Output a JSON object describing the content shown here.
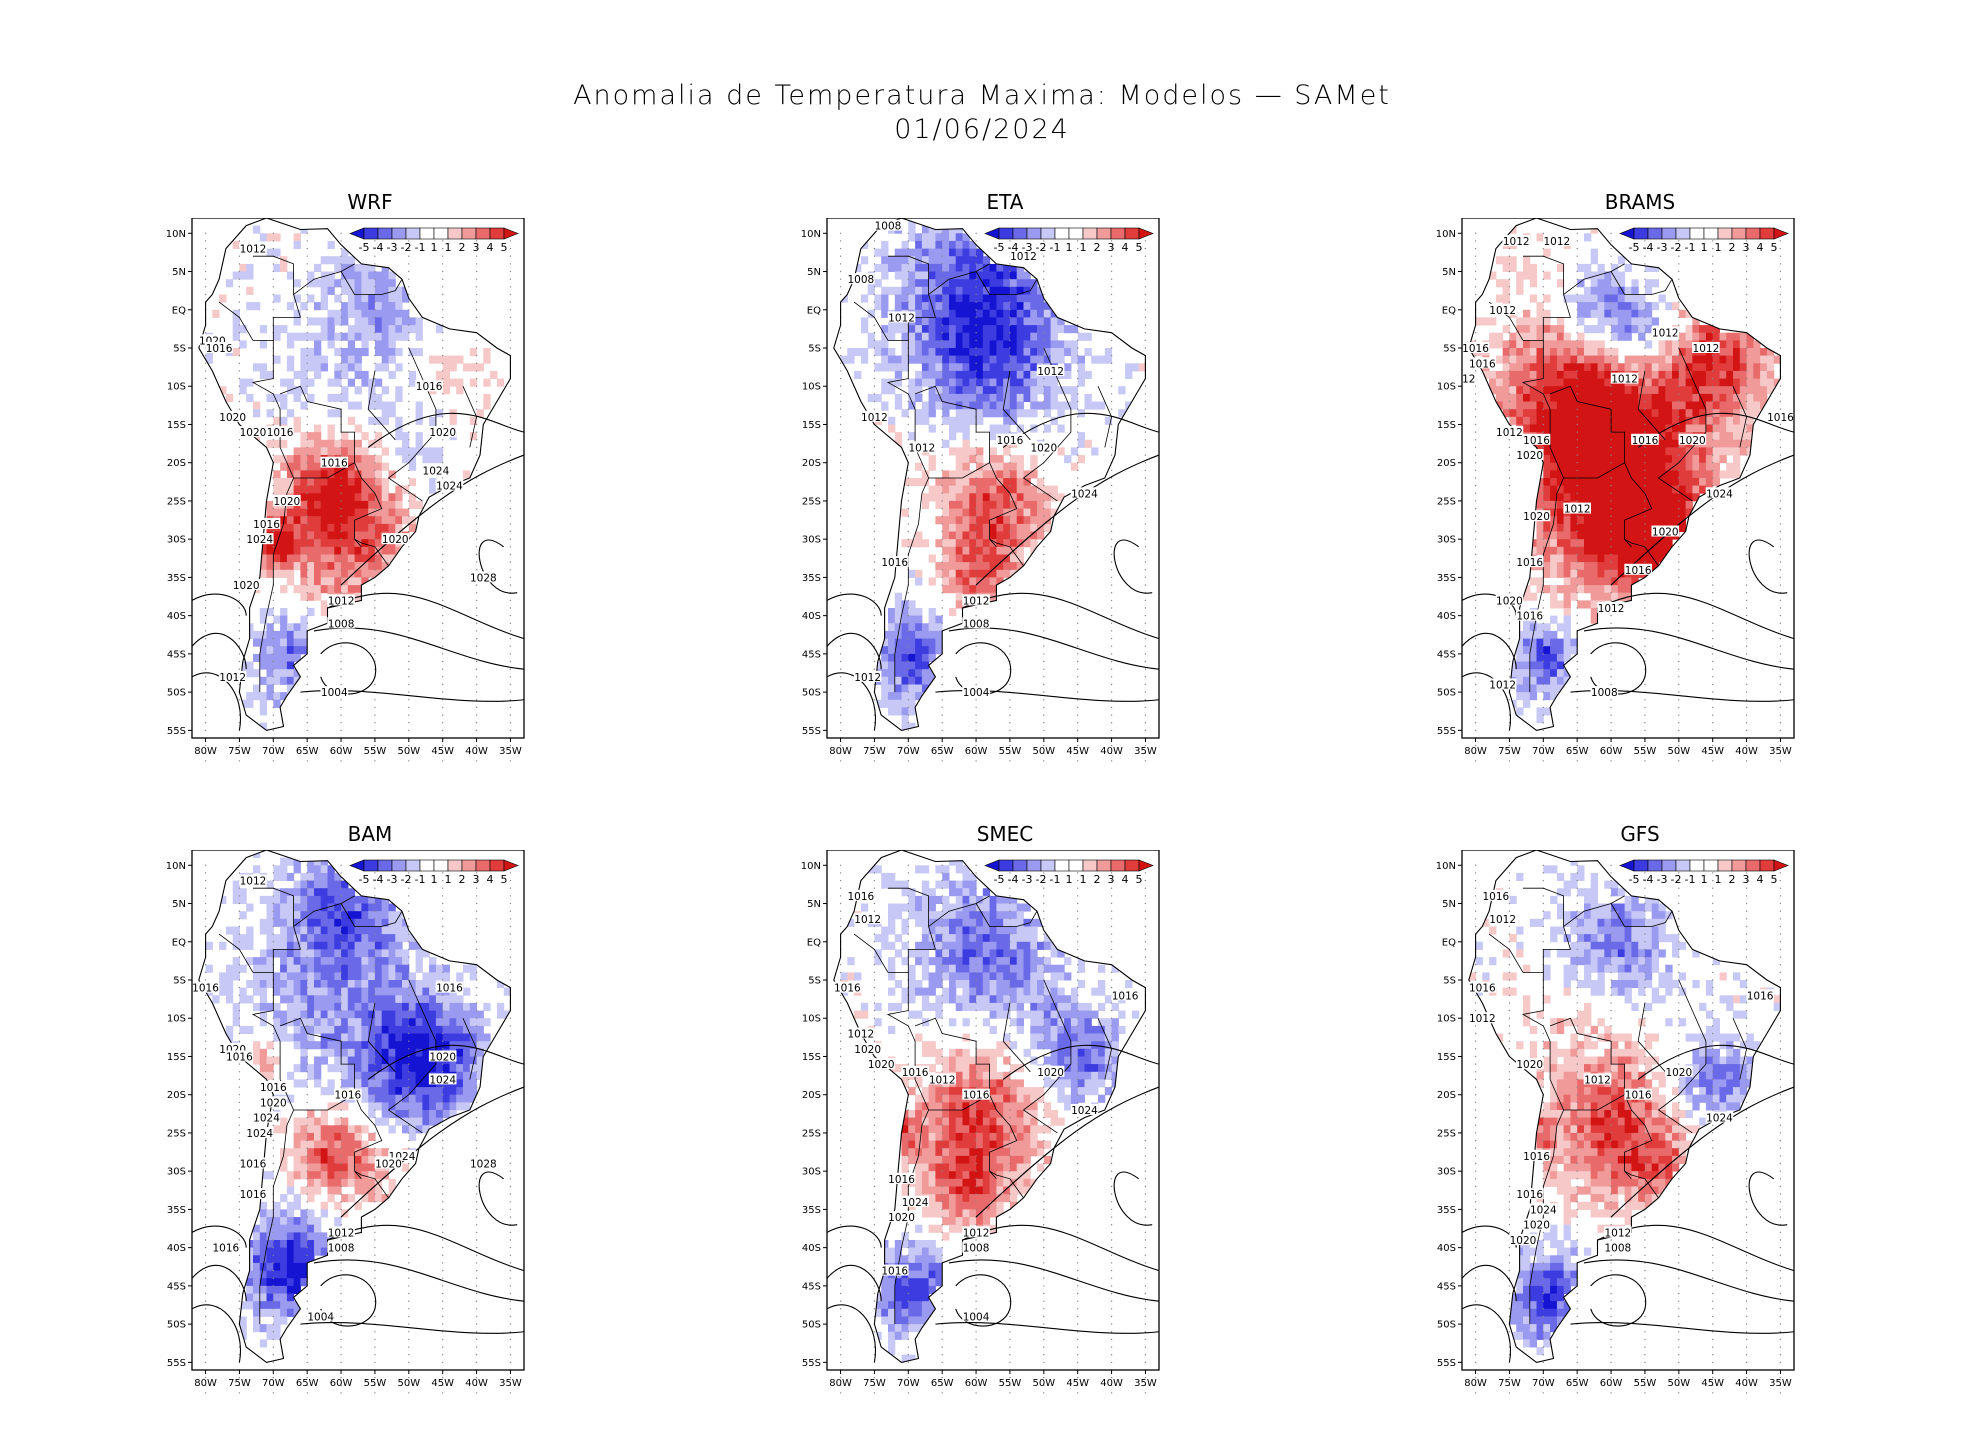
{
  "title": {
    "line1": "Anomalia de Temperatura Maxima: Modelos — SAMet",
    "line2": "01/06/2024"
  },
  "axes": {
    "lat_labels": [
      "10N",
      "5N",
      "EQ",
      "5S",
      "10S",
      "15S",
      "20S",
      "25S",
      "30S",
      "35S",
      "40S",
      "45S",
      "50S",
      "55S"
    ],
    "lon_labels": [
      "80W",
      "75W",
      "70W",
      "65W",
      "60W",
      "55W",
      "50W",
      "45W",
      "40W",
      "35W"
    ]
  },
  "colorbar": {
    "labels": [
      "-5",
      "-4",
      "-3",
      "-2",
      "-1",
      "1",
      "1",
      "2",
      "3",
      "4",
      "5"
    ],
    "colors": [
      "#1414d2",
      "#3c3ce0",
      "#6a6ae8",
      "#9a9af0",
      "#c8c8f6",
      "#ffffff",
      "#ffffff",
      "#f6c8c8",
      "#f09a9a",
      "#e86a6a",
      "#e03c3c",
      "#d21414"
    ]
  },
  "panels": [
    {
      "name": "WRF",
      "regions": [
        "#ff1e1e",
        "#f55",
        "#fff",
        "#ccd5ff",
        "#2a2aff",
        "#ff7777"
      ],
      "isobars": [
        {
          "label": "1012",
          "lon": -73,
          "lat": 8
        },
        {
          "label": "1020",
          "lon": -79,
          "lat": -4
        },
        {
          "label": "1016",
          "lon": -78,
          "lat": -5
        },
        {
          "label": "1016",
          "lon": -47,
          "lat": -10
        },
        {
          "label": "1020",
          "lon": -76,
          "lat": -14
        },
        {
          "label": "1020",
          "lon": -73,
          "lat": -16
        },
        {
          "label": "1016",
          "lon": -69,
          "lat": -16
        },
        {
          "label": "1020",
          "lon": -45,
          "lat": -16
        },
        {
          "label": "1016",
          "lon": -61,
          "lat": -20
        },
        {
          "label": "1024",
          "lon": -46,
          "lat": -21
        },
        {
          "label": "1024",
          "lon": -44,
          "lat": -23
        },
        {
          "label": "1020",
          "lon": -68,
          "lat": -25
        },
        {
          "label": "1016",
          "lon": -71,
          "lat": -28
        },
        {
          "label": "1024",
          "lon": -72,
          "lat": -30
        },
        {
          "label": "1020",
          "lon": -52,
          "lat": -30
        },
        {
          "label": "1028",
          "lon": -39,
          "lat": -35
        },
        {
          "label": "1020",
          "lon": -74,
          "lat": -36
        },
        {
          "label": "1012",
          "lon": -60,
          "lat": -38
        },
        {
          "label": "1008",
          "lon": -60,
          "lat": -41
        },
        {
          "label": "1012",
          "lon": -76,
          "lat": -48
        },
        {
          "label": "1004",
          "lon": -61,
          "lat": -50
        }
      ],
      "bias": "warm_south"
    },
    {
      "name": "ETA",
      "bias": "cold_north",
      "isobars": [
        {
          "label": "1008",
          "lon": -73,
          "lat": 11
        },
        {
          "label": "1012",
          "lon": -53,
          "lat": 7
        },
        {
          "label": "1008",
          "lon": -77,
          "lat": 4
        },
        {
          "label": "1012",
          "lon": -71,
          "lat": -1
        },
        {
          "label": "1012",
          "lon": -49,
          "lat": -8
        },
        {
          "label": "1012",
          "lon": -75,
          "lat": -14
        },
        {
          "label": "1012",
          "lon": -68,
          "lat": -18
        },
        {
          "label": "1016",
          "lon": -55,
          "lat": -17
        },
        {
          "label": "1020",
          "lon": -50,
          "lat": -18
        },
        {
          "label": "1024",
          "lon": -44,
          "lat": -24
        },
        {
          "label": "1016",
          "lon": -72,
          "lat": -33
        },
        {
          "label": "1012",
          "lon": -60,
          "lat": -38
        },
        {
          "label": "1008",
          "lon": -60,
          "lat": -41
        },
        {
          "label": "1012",
          "lon": -76,
          "lat": -48
        },
        {
          "label": "1004",
          "lon": -60,
          "lat": -50
        }
      ]
    },
    {
      "name": "BRAMS",
      "bias": "very_warm",
      "isobars": [
        {
          "label": "1012",
          "lon": -74,
          "lat": 9
        },
        {
          "label": "1012",
          "lon": -68,
          "lat": 9
        },
        {
          "label": "1012",
          "lon": -76,
          "lat": 0
        },
        {
          "label": "1012",
          "lon": -52,
          "lat": -3
        },
        {
          "label": "1012",
          "lon": -46,
          "lat": -5
        },
        {
          "label": "1016",
          "lon": -80,
          "lat": -5
        },
        {
          "label": "1016",
          "lon": -79,
          "lat": -7
        },
        {
          "label": "12",
          "lon": -81,
          "lat": -9
        },
        {
          "label": "1012",
          "lon": -58,
          "lat": -9
        },
        {
          "label": "1016",
          "lon": -35,
          "lat": -14
        },
        {
          "label": "1012",
          "lon": -75,
          "lat": -16
        },
        {
          "label": "1016",
          "lon": -71,
          "lat": -17
        },
        {
          "label": "1016",
          "lon": -55,
          "lat": -17
        },
        {
          "label": "1020",
          "lon": -48,
          "lat": -17
        },
        {
          "label": "1020",
          "lon": -72,
          "lat": -19
        },
        {
          "label": "1024",
          "lon": -44,
          "lat": -24
        },
        {
          "label": "1012",
          "lon": -65,
          "lat": -26
        },
        {
          "label": "1020",
          "lon": -71,
          "lat": -27
        },
        {
          "label": "1020",
          "lon": -52,
          "lat": -29
        },
        {
          "label": "1016",
          "lon": -72,
          "lat": -33
        },
        {
          "label": "1016",
          "lon": -56,
          "lat": -34
        },
        {
          "label": "1020",
          "lon": -75,
          "lat": -38
        },
        {
          "label": "1012",
          "lon": -60,
          "lat": -39
        },
        {
          "label": "1016",
          "lon": -72,
          "lat": -40
        },
        {
          "label": "1012",
          "lon": -76,
          "lat": -49
        },
        {
          "label": "1008",
          "lon": -61,
          "lat": -50
        }
      ]
    },
    {
      "name": "BAM",
      "bias": "cold",
      "isobars": [
        {
          "label": "1012",
          "lon": -73,
          "lat": 8
        },
        {
          "label": "1016",
          "lon": -80,
          "lat": -6
        },
        {
          "label": "1016",
          "lon": -44,
          "lat": -6
        },
        {
          "label": "1020",
          "lon": -76,
          "lat": -14
        },
        {
          "label": "1016",
          "lon": -75,
          "lat": -15
        },
        {
          "label": "1020",
          "lon": -45,
          "lat": -15
        },
        {
          "label": "1024",
          "lon": -45,
          "lat": -18
        },
        {
          "label": "1016",
          "lon": -70,
          "lat": -19
        },
        {
          "label": "1016",
          "lon": -59,
          "lat": -20
        },
        {
          "label": "1020",
          "lon": -70,
          "lat": -21
        },
        {
          "label": "1024",
          "lon": -71,
          "lat": -23
        },
        {
          "label": "1024",
          "lon": -72,
          "lat": -25
        },
        {
          "label": "1024",
          "lon": -51,
          "lat": -28
        },
        {
          "label": "1016",
          "lon": -73,
          "lat": -29
        },
        {
          "label": "1020",
          "lon": -53,
          "lat": -29
        },
        {
          "label": "1028",
          "lon": -39,
          "lat": -29
        },
        {
          "label": "1016",
          "lon": -73,
          "lat": -33
        },
        {
          "label": "1012",
          "lon": -60,
          "lat": -38
        },
        {
          "label": "1016",
          "lon": -77,
          "lat": -40
        },
        {
          "label": "1008",
          "lon": -60,
          "lat": -40
        },
        {
          "label": "1004",
          "lon": -63,
          "lat": -49
        }
      ]
    },
    {
      "name": "SMEC",
      "bias": "warm_central",
      "isobars": [
        {
          "label": "1016",
          "lon": -77,
          "lat": 6
        },
        {
          "label": "1012",
          "lon": -76,
          "lat": 3
        },
        {
          "label": "1016",
          "lon": -79,
          "lat": -6
        },
        {
          "label": "1016",
          "lon": -38,
          "lat": -7
        },
        {
          "label": "1012",
          "lon": -77,
          "lat": -12
        },
        {
          "label": "1020",
          "lon": -76,
          "lat": -14
        },
        {
          "label": "1020",
          "lon": -74,
          "lat": -16
        },
        {
          "label": "1016",
          "lon": -69,
          "lat": -17
        },
        {
          "label": "1012",
          "lon": -65,
          "lat": -18
        },
        {
          "label": "1016",
          "lon": -60,
          "lat": -20
        },
        {
          "label": "1020",
          "lon": -49,
          "lat": -17
        },
        {
          "label": "1024",
          "lon": -44,
          "lat": -22
        },
        {
          "label": "1016",
          "lon": -71,
          "lat": -31
        },
        {
          "label": "1024",
          "lon": -69,
          "lat": -34
        },
        {
          "label": "1020",
          "lon": -71,
          "lat": -36
        },
        {
          "label": "1012",
          "lon": -60,
          "lat": -38
        },
        {
          "label": "1008",
          "lon": -60,
          "lat": -40
        },
        {
          "label": "1016",
          "lon": -72,
          "lat": -43
        },
        {
          "label": "1004",
          "lon": -60,
          "lat": -49
        }
      ]
    },
    {
      "name": "GFS",
      "bias": "mixed",
      "isobars": [
        {
          "label": "1016",
          "lon": -77,
          "lat": 6
        },
        {
          "label": "1012",
          "lon": -76,
          "lat": 3
        },
        {
          "label": "1016",
          "lon": -79,
          "lat": -6
        },
        {
          "label": "1016",
          "lon": -38,
          "lat": -7
        },
        {
          "label": "1012",
          "lon": -79,
          "lat": -10
        },
        {
          "label": "1020",
          "lon": -72,
          "lat": -16
        },
        {
          "label": "1012",
          "lon": -62,
          "lat": -18
        },
        {
          "label": "1016",
          "lon": -56,
          "lat": -20
        },
        {
          "label": "1020",
          "lon": -50,
          "lat": -17
        },
        {
          "label": "1024",
          "lon": -44,
          "lat": -23
        },
        {
          "label": "1016",
          "lon": -71,
          "lat": -28
        },
        {
          "label": "1016",
          "lon": -72,
          "lat": -33
        },
        {
          "label": "1024",
          "lon": -70,
          "lat": -35
        },
        {
          "label": "1020",
          "lon": -71,
          "lat": -37
        },
        {
          "label": "1020",
          "lon": -73,
          "lat": -39
        },
        {
          "label": "1012",
          "lon": -59,
          "lat": -38
        },
        {
          "label": "1008",
          "lon": -59,
          "lat": -40
        }
      ]
    }
  ]
}
